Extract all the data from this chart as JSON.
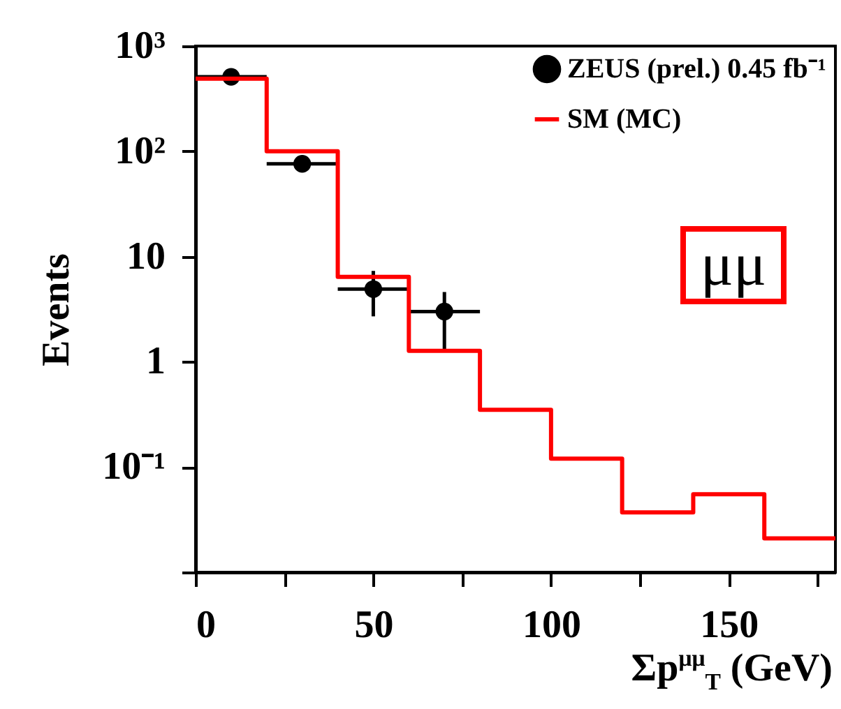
{
  "chart_data": {
    "type": "histogram",
    "xlabel": "Σp$^{μμ}$$_{T}$ (GeV)",
    "ylabel": "Events",
    "xlim": [
      0,
      180
    ],
    "xticks": [
      0,
      {
        "value": 25,
        "label": null
      },
      50,
      {
        "value": 75,
        "label": null
      },
      100,
      {
        "value": 125,
        "label": null
      },
      150,
      {
        "value": 175,
        "label": null
      }
    ],
    "ylim": [
      0.01,
      1000
    ],
    "yticks": [
      {
        "value": 0.01,
        "label": null
      },
      {
        "value": 0.1,
        "label": "10⁻¹"
      },
      1,
      10,
      {
        "value": 100,
        "label": "10²"
      },
      {
        "value": 1000,
        "label": "10³"
      }
    ],
    "log": "y",
    "legend": "top right",
    "annotations": [
      "μμ"
    ],
    "series": [
      {
        "name": "ZEUS (prel.) 0.45 fb⁻¹",
        "type": "scatter",
        "color": "#000000",
        "marker": "circle",
        "x": [
          10,
          30,
          50,
          70
        ],
        "values": [
          510,
          76,
          4.9,
          3
        ],
        "errors": [
          null,
          null,
          [
            2.7,
            7.3
          ],
          [
            1.25,
            4.6
          ]
        ],
        "xerrors": [
          10,
          10,
          10,
          10
        ]
      },
      {
        "name": "SM (MC)",
        "color": "#ff0000",
        "bins": [
          0,
          20,
          40,
          60,
          80,
          100,
          120,
          140,
          160,
          180
        ],
        "values": [
          490,
          100,
          6.4,
          1.27,
          0.35,
          0.12,
          0.037,
          0.055,
          0.021
        ]
      }
    ]
  }
}
